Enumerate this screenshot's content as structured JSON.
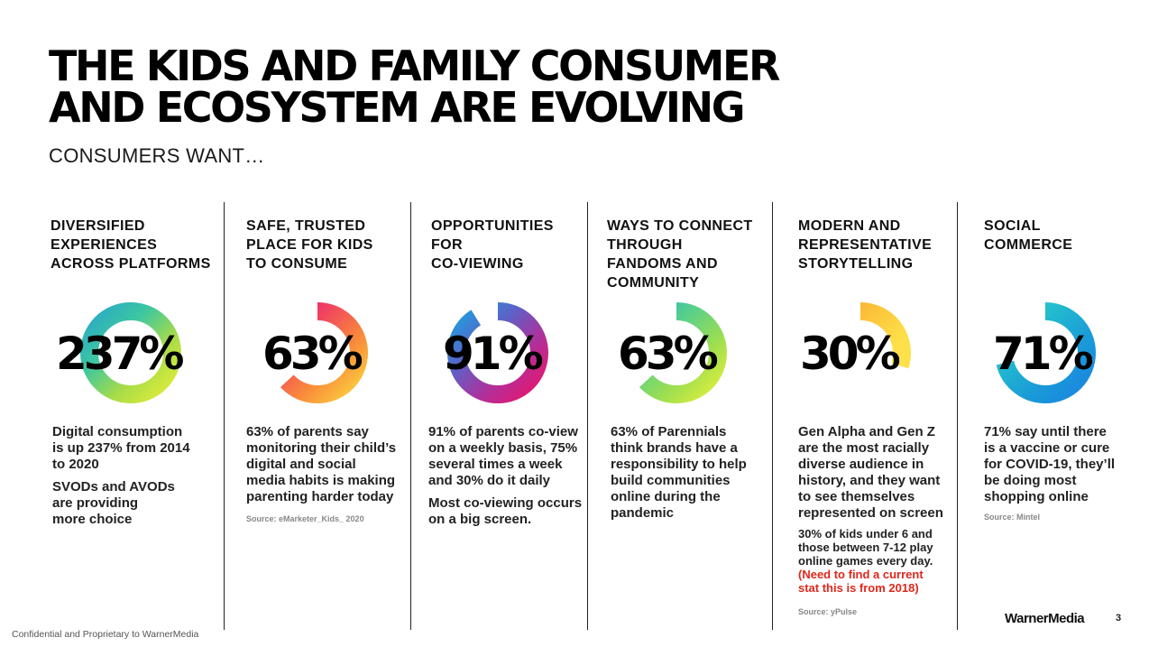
{
  "title": {
    "line1": "THE KIDS AND FAMILY CONSUMER",
    "line2": "AND ECOSYSTEM ARE EVOLVING"
  },
  "subtitle": "CONSUMERS WANT…",
  "columns": [
    {
      "heading": [
        "DIVERSIFIED",
        "EXPERIENCES",
        "ACROSS PLATFORMS"
      ],
      "stat": "237%",
      "fill": 1.0,
      "colors": [
        "#2aa8c8",
        "#3dc7a0",
        "#a8dc48",
        "#e2ec3a"
      ],
      "body1": [
        "Digital consumption",
        "is up 237% from 2014",
        "to 2020"
      ],
      "body2": [
        "SVODs and AVODs",
        "are providing",
        "more choice"
      ],
      "source": ""
    },
    {
      "heading": [
        "SAFE, TRUSTED",
        "PLACE FOR KIDS",
        "TO CONSUME"
      ],
      "stat": "63%",
      "fill": 0.63,
      "colors": [
        "#e8157a",
        "#f24a5c",
        "#f98c3a",
        "#fbd23e"
      ],
      "body1": [
        "63% of parents say",
        "monitoring their child’s",
        "digital and social",
        "media habits is making",
        "parenting harder today"
      ],
      "body2": [],
      "source": "Source: eMarketer_Kids_ 2020"
    },
    {
      "heading": [
        "OPPORTUNITIES",
        "FOR",
        "CO-VIEWING"
      ],
      "stat": "91%",
      "fill": 0.91,
      "colors": [
        "#1aa2e0",
        "#5b62c8",
        "#b0309a",
        "#e8156e"
      ],
      "body1": [
        "91% of parents co-view",
        "on a weekly basis, 75%",
        "several times a week",
        "and 30% do it daily"
      ],
      "body2": [
        "Most co-viewing occurs",
        "on a big screen."
      ],
      "source": ""
    },
    {
      "heading": [
        "WAYS TO CONNECT",
        "THROUGH",
        "FANDOMS AND",
        "COMMUNITY"
      ],
      "stat": "63%",
      "fill": 0.63,
      "colors": [
        "#2bb8c0",
        "#58cf8a",
        "#9ade52",
        "#e0ee3c"
      ],
      "body1": [
        "63% of Parennials",
        "think brands have a",
        "responsibility to help",
        "build communities",
        "online during the",
        "pandemic"
      ],
      "body2": [],
      "source": ""
    },
    {
      "heading": [
        "MODERN AND",
        "REPRESENTATIVE",
        "STORYTELLING"
      ],
      "stat": "30%",
      "fill": 0.3,
      "colors": [
        "#f9a032",
        "#fcc43a",
        "#fde04a",
        "#fde04a"
      ],
      "body1": [
        "Gen Alpha and Gen Z",
        "are the most racially",
        "diverse audience in",
        "history, and they want",
        "to see themselves",
        "represented on screen"
      ],
      "small": [
        "30% of kids under 6 and",
        "those between 7-12 play",
        "online games every day."
      ],
      "small_red": [
        "(Need to find a current",
        "stat this is from 2018)"
      ],
      "source": "Source: yPulse"
    },
    {
      "heading": [
        "SOCIAL",
        "COMMERCE"
      ],
      "stat": "71%",
      "fill": 0.71,
      "colors": [
        "#2ad4c8",
        "#22b8d0",
        "#1a9ad8",
        "#1a86e0"
      ],
      "body1": [
        "71% say until there",
        "is a vaccine or cure",
        "for COVID-19, they’ll",
        "be doing most",
        "shopping online"
      ],
      "body2": [],
      "source": "Source: Mintel"
    }
  ],
  "footer": "Confidential and Proprietary to WarnerMedia",
  "logo": "WarnerMedia",
  "page_number": "3"
}
